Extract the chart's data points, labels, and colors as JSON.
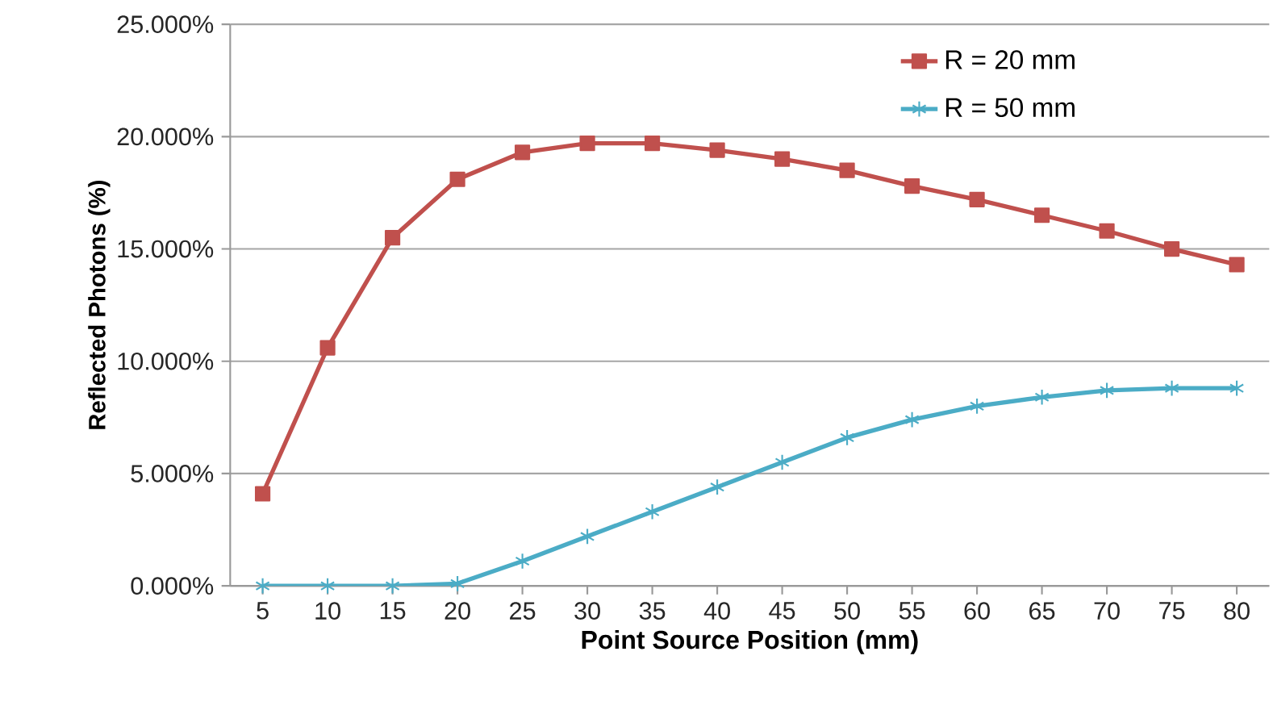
{
  "chart_data": {
    "type": "line",
    "xlabel": "Point Source Position (mm)",
    "ylabel": "Reflected Photons  (%)",
    "categories": [
      "5",
      "10",
      "15",
      "20",
      "25",
      "30",
      "35",
      "40",
      "45",
      "50",
      "55",
      "60",
      "65",
      "70",
      "75",
      "80"
    ],
    "series": [
      {
        "name": "R = 20 mm",
        "color": "#c0504d",
        "marker": "square",
        "values": [
          4.1,
          10.6,
          15.5,
          18.1,
          19.3,
          19.7,
          19.7,
          19.4,
          19.0,
          18.5,
          17.8,
          17.2,
          16.5,
          15.8,
          15.0,
          14.3
        ]
      },
      {
        "name": "R = 50 mm",
        "color": "#4bacc6",
        "marker": "cross",
        "values": [
          0,
          0,
          0,
          0.1,
          1.1,
          2.2,
          3.3,
          4.4,
          5.5,
          6.6,
          7.4,
          8.0,
          8.4,
          8.7,
          8.8,
          8.8
        ]
      }
    ],
    "ylim": [
      0,
      25
    ],
    "yticks": [
      {
        "value": 0,
        "label": "0.000%"
      },
      {
        "value": 5,
        "label": "5.000%"
      },
      {
        "value": 10,
        "label": "10.000%"
      },
      {
        "value": 15,
        "label": "15.000%"
      },
      {
        "value": 20,
        "label": "20.000%"
      },
      {
        "value": 25,
        "label": "25.000%"
      }
    ],
    "grid": "y",
    "legend": "top right",
    "line_style": "solid"
  }
}
